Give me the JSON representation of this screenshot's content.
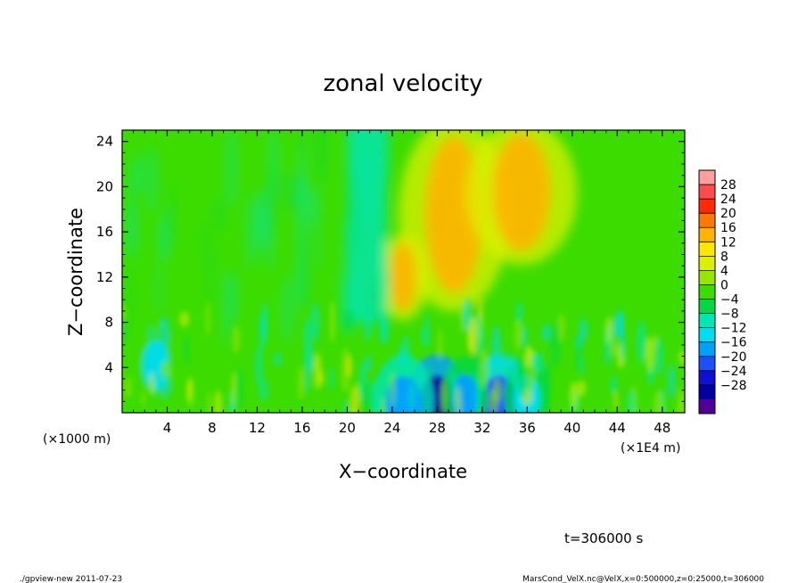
{
  "chart_data": {
    "type": "heatmap",
    "title": "zonal velocity",
    "xlabel": "X−coordinate",
    "ylabel": "Z−coordinate",
    "x_unit_label": "(×1E4 m)",
    "y_unit_label": "(×1000 m)",
    "xlim": [
      0,
      50
    ],
    "ylim": [
      0,
      25
    ],
    "x_ticks": [
      4,
      8,
      12,
      16,
      20,
      24,
      28,
      32,
      36,
      40,
      44,
      48
    ],
    "x_tick_labels": [
      "4",
      "8",
      "12",
      "16",
      "20",
      "24",
      "28",
      "32",
      "36",
      "40",
      "44",
      "48"
    ],
    "y_ticks": [
      4,
      8,
      12,
      16,
      20,
      24
    ],
    "y_tick_labels": [
      "4",
      "8",
      "12",
      "16",
      "20",
      "24"
    ],
    "colorbar": {
      "levels": [
        28,
        24,
        20,
        16,
        12,
        8,
        4,
        0,
        -4,
        -8,
        -12,
        -16,
        -20,
        -24,
        -28
      ],
      "labels": [
        "28",
        "24",
        "20",
        "16",
        "12",
        "8",
        "4",
        "0",
        "−4",
        "−8",
        "−12",
        "−16",
        "−20",
        "−24",
        "−28"
      ],
      "colors": [
        "#ff9e9e",
        "#ff4b4b",
        "#ff2a00",
        "#ff7800",
        "#ffb400",
        "#ffe600",
        "#dcf000",
        "#96e600",
        "#3cdc00",
        "#00d846",
        "#00e6b4",
        "#00dcf0",
        "#00a0ff",
        "#1c50ff",
        "#1010d2",
        "#0000a0",
        "#500096"
      ]
    },
    "features": [
      {
        "kind": "orange-jet",
        "x": 29.5,
        "z_from": 10,
        "z_to": 25,
        "value": 18
      },
      {
        "kind": "orange-jet",
        "x": 35.5,
        "z_from": 14,
        "z_to": 25,
        "value": 16
      },
      {
        "kind": "orange-plume",
        "x": 25,
        "z_from": 9,
        "z_to": 15,
        "value": 16
      },
      {
        "kind": "cyan-band",
        "x_from": 20,
        "x_to": 23.5,
        "z_from": 8,
        "z_to": 25,
        "value": -8
      },
      {
        "kind": "blue-cell",
        "x": 28,
        "z": 1,
        "value": -26
      },
      {
        "kind": "blue-cell",
        "x": 33.5,
        "z": 1,
        "value": -20
      },
      {
        "kind": "blue-cell",
        "x": 25,
        "z": 1,
        "value": -16
      },
      {
        "kind": "blue-cell",
        "x": 30.5,
        "z": 1.5,
        "value": -14
      },
      {
        "kind": "blue-cell",
        "x": 36,
        "z": 1.5,
        "value": -12
      },
      {
        "kind": "cyan-patch",
        "x": 3,
        "z": 4.5,
        "value": -10
      }
    ]
  },
  "footer": {
    "time_label": "t=306000 s",
    "program": "./gpview-new   2011-07-23",
    "source": "MarsCond_VelX.nc@VelX,x=0:500000,z=0:25000,t=306000"
  }
}
